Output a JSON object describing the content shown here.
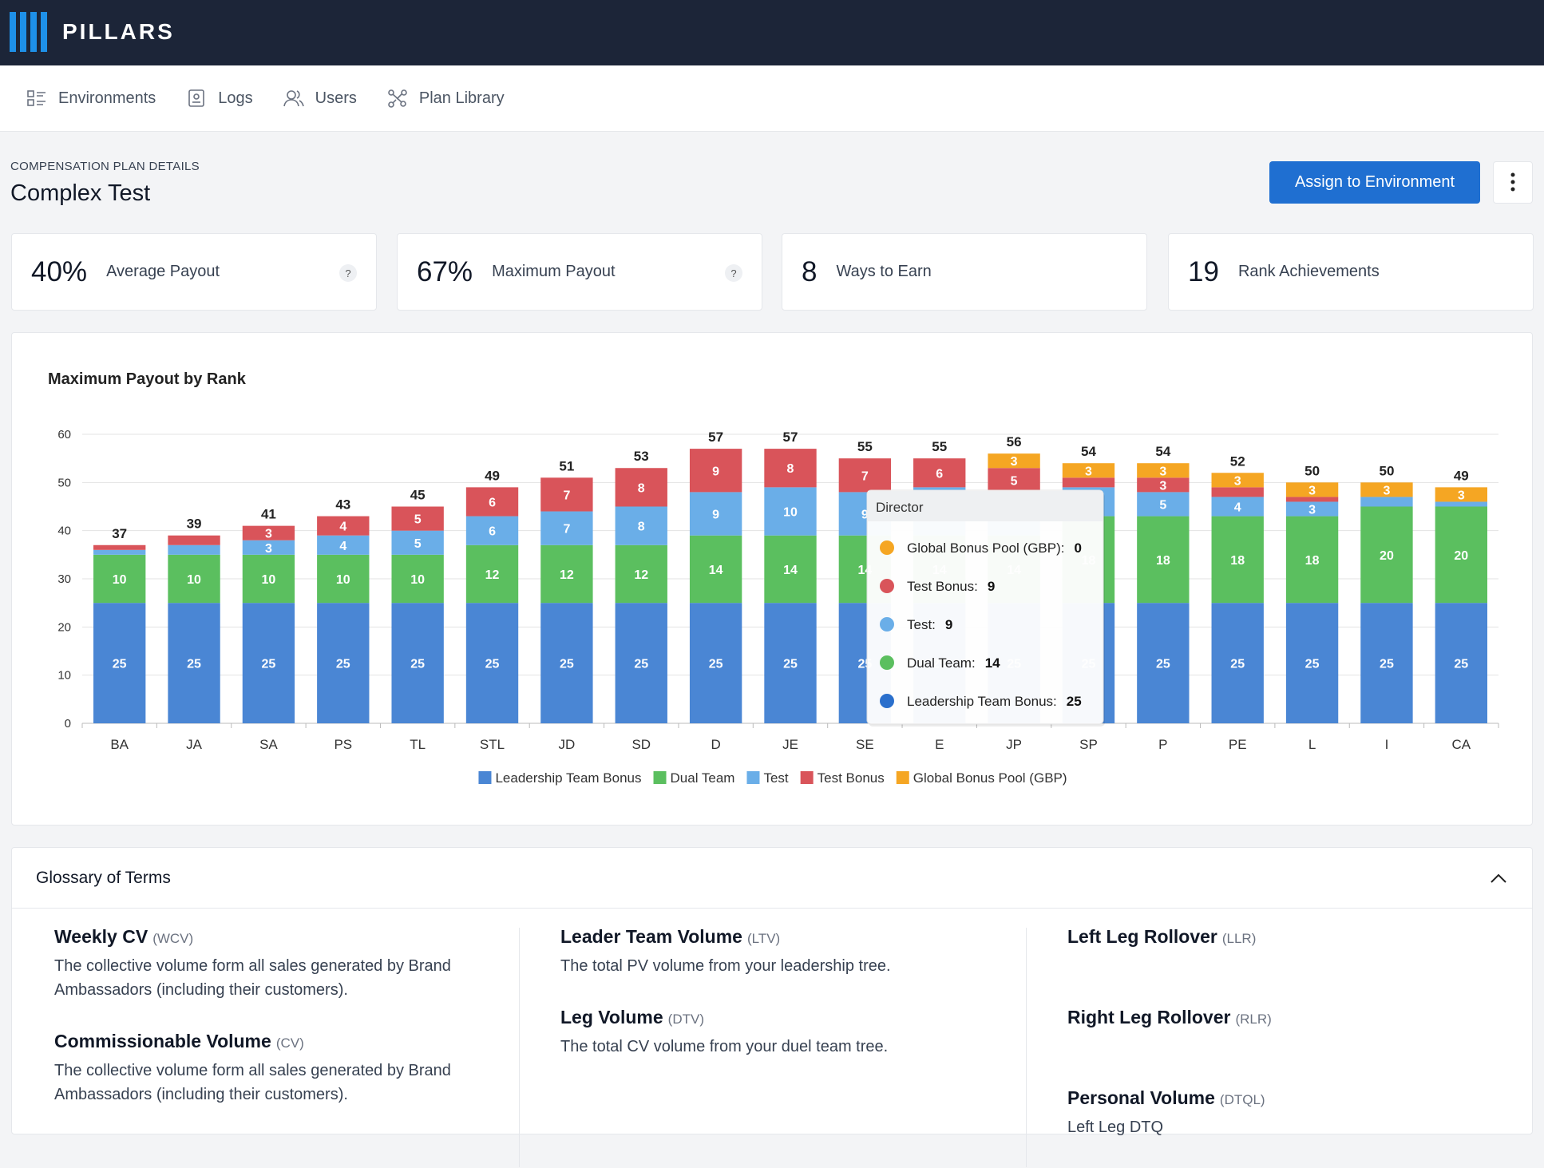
{
  "header": {
    "brand": "PILLARS"
  },
  "nav": [
    "Environments",
    "Logs",
    "Users",
    "Plan Library"
  ],
  "page": {
    "eyebrow": "COMPENSATION PLAN DETAILS",
    "title": "Complex Test",
    "action": "Assign to Environment"
  },
  "stats": [
    {
      "value": "40%",
      "label": "Average Payout",
      "help": "?"
    },
    {
      "value": "67%",
      "label": "Maximum Payout",
      "help": "?"
    },
    {
      "value": "8",
      "label": "Ways to Earn"
    },
    {
      "value": "19",
      "label": "Rank Achievements"
    }
  ],
  "chart_data": {
    "type": "bar",
    "stacked": true,
    "title": "Maximum Payout by Rank",
    "categories": [
      "BA",
      "JA",
      "SA",
      "PS",
      "TL",
      "STL",
      "JD",
      "SD",
      "D",
      "JE",
      "SE",
      "E",
      "JP",
      "SP",
      "P",
      "PE",
      "L",
      "I",
      "CA"
    ],
    "series": [
      {
        "name": "Leadership Team Bonus",
        "color": "#4a86d4",
        "values": [
          25,
          25,
          25,
          25,
          25,
          25,
          25,
          25,
          25,
          25,
          25,
          25,
          25,
          25,
          25,
          25,
          25,
          25,
          25
        ]
      },
      {
        "name": "Dual Team",
        "color": "#5bbf5f",
        "values": [
          10,
          10,
          10,
          10,
          10,
          12,
          12,
          12,
          14,
          14,
          14,
          14,
          14,
          18,
          18,
          18,
          18,
          20,
          20
        ]
      },
      {
        "name": "Test",
        "color": "#6aaee8",
        "values": [
          1,
          2,
          3,
          4,
          5,
          6,
          7,
          8,
          9,
          10,
          9,
          10,
          9,
          6,
          5,
          4,
          3,
          2,
          1
        ]
      },
      {
        "name": "Test Bonus",
        "color": "#d9545a",
        "values": [
          1,
          2,
          3,
          4,
          5,
          6,
          7,
          8,
          9,
          8,
          7,
          6,
          5,
          2,
          3,
          2,
          1,
          0,
          0
        ]
      },
      {
        "name": "Global Bonus Pool (GBP)",
        "color": "#f5a623",
        "values": [
          0,
          0,
          0,
          0,
          0,
          0,
          0,
          0,
          0,
          0,
          0,
          0,
          3,
          3,
          3,
          3,
          3,
          3,
          3
        ]
      }
    ],
    "totals": [
      37,
      39,
      41,
      43,
      45,
      49,
      51,
      53,
      57,
      57,
      55,
      55,
      56,
      54,
      54,
      52,
      50,
      50,
      49
    ],
    "ylim": [
      0,
      60
    ],
    "yticks": [
      0,
      10,
      20,
      30,
      40,
      50,
      60
    ],
    "grid": true,
    "legend": "bottom",
    "tooltip": {
      "title": "Director",
      "items": [
        {
          "label": "Global Bonus Pool (GBP):",
          "value": 0,
          "color": "#f5a623"
        },
        {
          "label": "Test Bonus:",
          "value": 9,
          "color": "#d9545a"
        },
        {
          "label": "Test:",
          "value": 9,
          "color": "#6aaee8"
        },
        {
          "label": "Dual Team:",
          "value": 14,
          "color": "#5bbf5f"
        },
        {
          "label": "Leadership Team Bonus:",
          "value": 25,
          "color": "#2a6fcc"
        }
      ]
    }
  },
  "glossary": {
    "title": "Glossary of Terms",
    "columns": [
      [
        {
          "term": "Weekly CV",
          "abbr": "(WCV)",
          "description": "The collective volume form all sales generated by Brand Ambassadors (including their customers)."
        },
        {
          "term": "Commissionable Volume",
          "abbr": "(CV)",
          "description": "The collective volume form all sales generated by Brand Ambassadors (including their customers)."
        }
      ],
      [
        {
          "term": "Leader Team Volume",
          "abbr": "(LTV)",
          "description": "The total PV volume from your leadership tree."
        },
        {
          "term": "Leg Volume",
          "abbr": "(DTV)",
          "description": "The total CV volume from your duel team tree."
        }
      ],
      [
        {
          "term": "Left Leg Rollover",
          "abbr": "(LLR)",
          "description": ""
        },
        {
          "term": "Right Leg Rollover",
          "abbr": "(RLR)",
          "description": ""
        },
        {
          "term": "Personal Volume",
          "abbr": "(DTQL)",
          "description": "Left Leg DTQ"
        }
      ]
    ]
  }
}
